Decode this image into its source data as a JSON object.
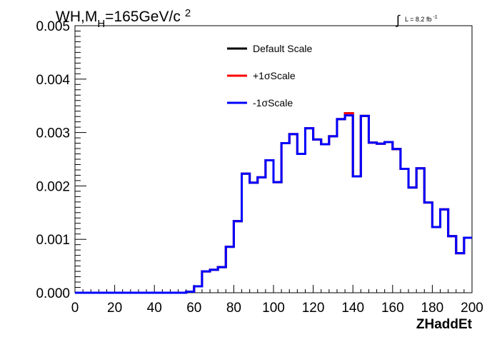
{
  "chart_data": {
    "type": "line",
    "title_main": "WH,M",
    "title_sub": "H",
    "title_rest": "=165GeV/c",
    "title_sup": "2",
    "lumi_integral": "∫",
    "lumi_text": "L = 8.2 fb",
    "lumi_sup": "-1",
    "xlabel": "ZHaddEt",
    "ylabel": "",
    "xlim": [
      0,
      200
    ],
    "ylim": [
      0,
      0.005
    ],
    "x_ticks": [
      "0",
      "20",
      "40",
      "60",
      "80",
      "100",
      "120",
      "140",
      "160",
      "180",
      "200"
    ],
    "y_ticks": [
      "0.000",
      "0.001",
      "0.002",
      "0.003",
      "0.004",
      "0.005"
    ],
    "bin_width": 4,
    "bin_edges_start": 0,
    "legend": [
      {
        "name": "Default Scale",
        "color": "#000000"
      },
      {
        "name": "+1σScale",
        "color": "#ff0000"
      },
      {
        "name": "-1σScale",
        "color": "#0000ff"
      }
    ],
    "series": [
      {
        "name": "Default Scale",
        "color": "#000000",
        "values": [
          0,
          0,
          0,
          0,
          0,
          0,
          0,
          0,
          0,
          0,
          0,
          0,
          0,
          0,
          2e-05,
          0.00012,
          0.0004,
          0.00043,
          0.00048,
          0.00086,
          0.00134,
          0.00223,
          0.00206,
          0.00216,
          0.00248,
          0.00207,
          0.0028,
          0.00297,
          0.0026,
          0.00308,
          0.00287,
          0.00278,
          0.00293,
          0.00325,
          0.00336,
          0.00218,
          0.00331,
          0.00281,
          0.00279,
          0.00282,
          0.00269,
          0.00232,
          0.00197,
          0.00233,
          0.00169,
          0.00123,
          0.00156,
          0.00106,
          0.00074,
          0.00103
        ]
      },
      {
        "name": "+1σScale",
        "color": "#ff0000",
        "values": [
          0,
          0,
          0,
          0,
          0,
          0,
          0,
          0,
          0,
          0,
          0,
          0,
          0,
          0,
          2e-05,
          0.00012,
          0.0004,
          0.00043,
          0.00048,
          0.00086,
          0.00134,
          0.00223,
          0.00206,
          0.00216,
          0.00248,
          0.00207,
          0.0028,
          0.00297,
          0.0026,
          0.00308,
          0.00287,
          0.00278,
          0.00293,
          0.00325,
          0.00336,
          0.00218,
          0.00331,
          0.00281,
          0.00279,
          0.00282,
          0.00269,
          0.00232,
          0.00197,
          0.00233,
          0.00169,
          0.00123,
          0.00156,
          0.00106,
          0.00074,
          0.00103
        ]
      },
      {
        "name": "-1σScale",
        "color": "#0000ff",
        "values": [
          0,
          0,
          0,
          0,
          0,
          0,
          0,
          0,
          0,
          0,
          0,
          0,
          0,
          0,
          2e-05,
          0.00012,
          0.0004,
          0.00043,
          0.00048,
          0.00086,
          0.00134,
          0.00223,
          0.00206,
          0.00216,
          0.00248,
          0.00207,
          0.0028,
          0.00297,
          0.0026,
          0.00308,
          0.00287,
          0.00278,
          0.00293,
          0.00325,
          0.00332,
          0.00218,
          0.00331,
          0.00281,
          0.00279,
          0.00282,
          0.00269,
          0.00232,
          0.00197,
          0.00233,
          0.00169,
          0.00123,
          0.00156,
          0.00106,
          0.00074,
          0.00103
        ]
      }
    ]
  }
}
